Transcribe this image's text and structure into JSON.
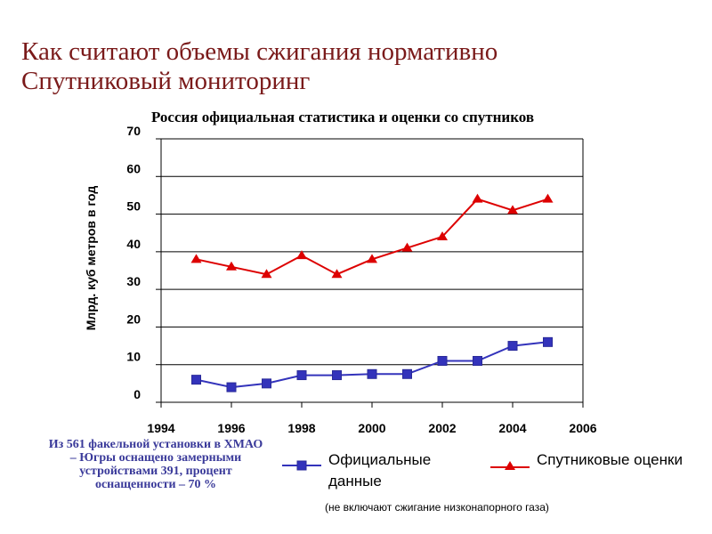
{
  "slide": {
    "title_line1": "Как считают объемы сжигания нормативно",
    "title_line2": "Спутниковый мониторинг",
    "note_left": "Из 561 факельной установки в ХМАО – Югры оснащено замерными устройствами 391, процент оснащенности – 70 %",
    "note_bottom": "(не включают сжигание низконапорного газа)"
  },
  "colors": {
    "title": "#7a1a1a",
    "official": "#3333bb",
    "satellite": "#dd0000",
    "note": "#3a3a9a"
  },
  "chart_data": {
    "type": "line",
    "title": "Россия официальная статистика и оценки со спутников",
    "ylabel": "Млрд. куб метров в год",
    "xlabel": "",
    "xlim": [
      1994,
      2006
    ],
    "ylim": [
      0,
      70
    ],
    "x_ticks": [
      1994,
      1996,
      1998,
      2000,
      2002,
      2004,
      2006
    ],
    "y_ticks": [
      0,
      10,
      20,
      30,
      40,
      50,
      60,
      70
    ],
    "grid": "horizontal",
    "legend_position": "bottom",
    "series": [
      {
        "name": "Официальные данные",
        "marker": "square",
        "x": [
          1995,
          1996,
          1997,
          1998,
          1999,
          2000,
          2001,
          2002,
          2003,
          2004,
          2005
        ],
        "values": [
          6,
          4,
          5,
          7.2,
          7.2,
          7.5,
          7.5,
          11,
          11,
          15,
          16
        ]
      },
      {
        "name": "Спутниковые оценки",
        "marker": "triangle",
        "x": [
          1995,
          1996,
          1997,
          1998,
          1999,
          2000,
          2001,
          2002,
          2003,
          2004,
          2005
        ],
        "values": [
          38,
          36,
          34,
          39,
          34,
          38,
          41,
          44,
          54,
          51,
          54
        ]
      }
    ]
  }
}
